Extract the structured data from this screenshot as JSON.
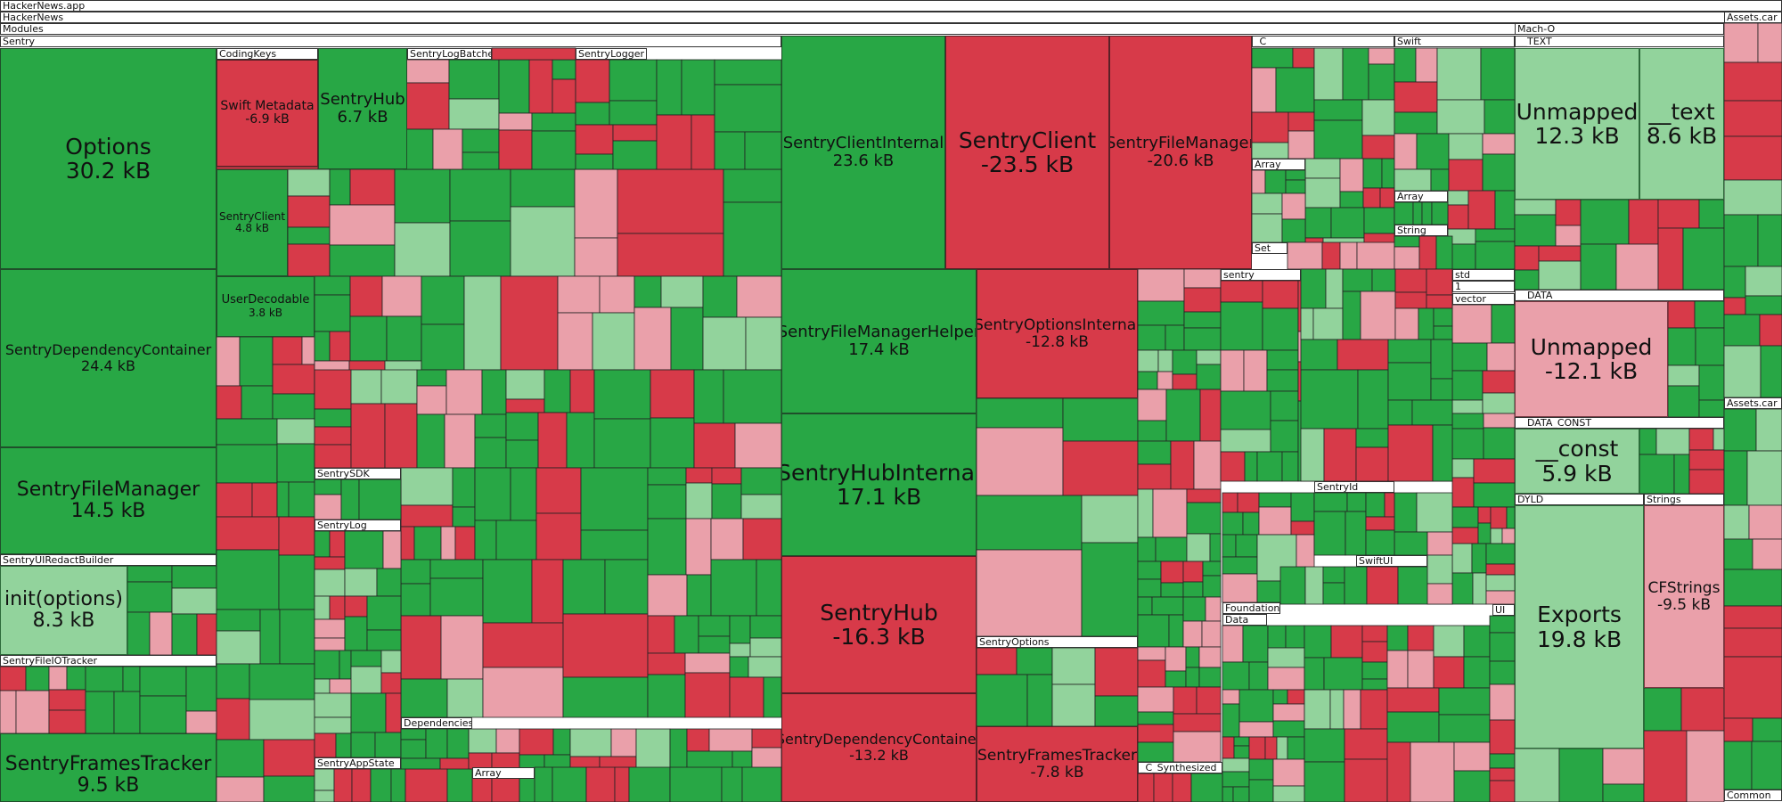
{
  "breadcrumbs": {
    "app": "HackerNews.app",
    "binary": "HackerNews",
    "modules": "Modules",
    "sentry": "Sentry",
    "mach_o": "Mach-O",
    "text_segment": "__TEXT",
    "data_segment": "__DATA",
    "data_const_segment": "__DATA_CONST",
    "dyld": "DYLD",
    "strings": "Strings",
    "assets_car_1": "Assets.car",
    "assets_car_2": "Assets.car",
    "common": "Common"
  },
  "group_labels": {
    "coding_keys": "CodingKeys",
    "sentry_log_batcher": "SentryLogBatcher",
    "sentry_logger": "SentryLogger",
    "sentry_sdk": "SentrySDK",
    "sentry_log": "SentryLog",
    "dependencies": "Dependencies",
    "sentry_app_state": "SentryAppState",
    "array_1": "Array",
    "ui_redact_builder": "SentryUIRedactBuilder",
    "file_io_tracker": "SentryFileIOTracker",
    "c_group": "_C",
    "swift_group": "Swift",
    "array_2": "Array",
    "array_3": "Array",
    "set": "Set",
    "string": "String",
    "sentry_lower": "sentry",
    "std": "std",
    "one": "1",
    "vector": "vector",
    "sentry_id": "SentryId",
    "swift_ui": "SwiftUI",
    "foundation": "Foundation",
    "data": "Data",
    "ui": "UI",
    "sentry_options": "SentryOptions",
    "c_synthesized": "_C_Synthesized"
  },
  "tiles": {
    "options": {
      "name": "Options",
      "size": "30.2 kB"
    },
    "dependency_container": {
      "name": "SentryDependencyContainer",
      "size": "24.4 kB"
    },
    "file_manager": {
      "name": "SentryFileManager",
      "size": "14.5 kB"
    },
    "init_options": {
      "name": "init(options)",
      "size": "8.3 kB"
    },
    "frames_tracker": {
      "name": "SentryFramesTracker",
      "size": "9.5 kB"
    },
    "swift_metadata": {
      "name": "Swift Metadata",
      "size": "-6.9 kB"
    },
    "sentry_hub_small": {
      "name": "SentryHub",
      "size": "6.7 kB"
    },
    "sentry_client_small": {
      "name": "SentryClient",
      "size": "4.8 kB"
    },
    "user_decodable": {
      "name": "UserDecodable",
      "size": "3.8 kB"
    },
    "client_internal": {
      "name": "SentryClientInternal",
      "size": "23.6 kB"
    },
    "sentry_client_neg": {
      "name": "SentryClient",
      "size": "-23.5 kB"
    },
    "file_manager_neg": {
      "name": "SentryFileManager",
      "size": "-20.6 kB"
    },
    "file_manager_helper": {
      "name": "SentryFileManagerHelper",
      "size": "17.4 kB"
    },
    "options_internal": {
      "name": "SentryOptionsInternal",
      "size": "-12.8 kB"
    },
    "hub_internal": {
      "name": "SentryHubInternal",
      "size": "17.1 kB"
    },
    "sentry_hub_neg": {
      "name": "SentryHub",
      "size": "-16.3 kB"
    },
    "dependency_container_neg": {
      "name": "SentryDependencyContainer",
      "size": "-13.2 kB"
    },
    "frames_tracker_neg": {
      "name": "SentryFramesTracker",
      "size": "-7.8 kB"
    },
    "unmapped_text": {
      "name": "Unmapped",
      "size": "12.3 kB"
    },
    "text_section": {
      "name": "__text",
      "size": "8.6 kB"
    },
    "unmapped_data": {
      "name": "Unmapped",
      "size": "-12.1 kB"
    },
    "const_section": {
      "name": "__const",
      "size": "5.9 kB"
    },
    "exports": {
      "name": "Exports",
      "size": "19.8 kB"
    },
    "cfstrings": {
      "name": "CFStrings",
      "size": "-9.5 kB"
    }
  },
  "colors": {
    "increase": "#28a745",
    "increase_light": "#92d39c",
    "decrease": "#d73a49",
    "decrease_light": "#eaa0aa"
  }
}
